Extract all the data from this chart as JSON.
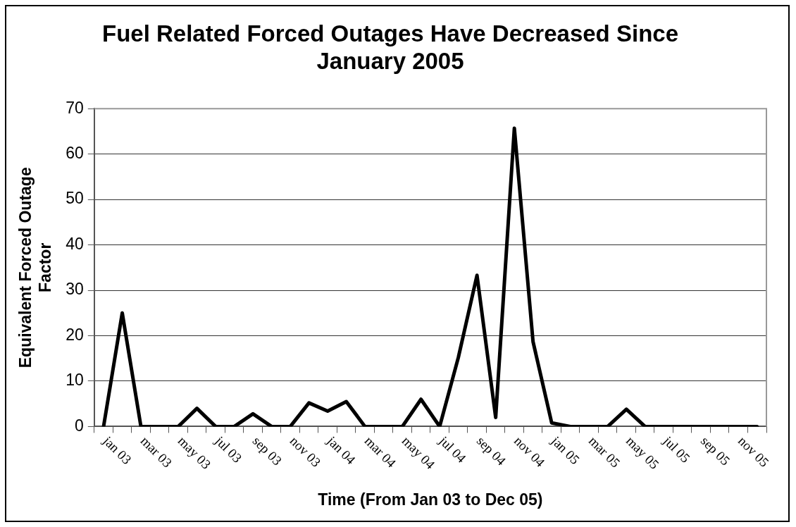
{
  "chart_data": {
    "type": "line",
    "title": "Fuel Related Forced Outages Have Decreased Since January 2005",
    "xlabel": "Time (From Jan 03 to Dec 05)",
    "ylabel": "Equivalent Forced Outage Factor",
    "categories": [
      "jan 03",
      null,
      "mar 03",
      null,
      "may 03",
      null,
      "jul 03",
      null,
      "sep 03",
      null,
      "nov 03",
      null,
      "jan 04",
      null,
      "mar 04",
      null,
      "may 04",
      null,
      "jul 04",
      null,
      "sep 04",
      null,
      "nov 04",
      null,
      "jan 05",
      null,
      "mar 05",
      null,
      "may 05",
      null,
      "jul 05",
      null,
      "sep 05",
      null,
      "nov 05",
      null
    ],
    "series": [
      {
        "color": "#000000",
        "values": [
          0,
          25,
          0,
          0,
          0,
          4,
          0,
          0,
          2.8,
          0,
          0,
          5.2,
          3.4,
          5.5,
          0,
          0,
          0,
          6,
          0,
          15.2,
          33.3,
          2,
          65.7,
          18.7,
          0.8,
          0,
          0,
          0,
          3.8,
          0,
          0,
          0,
          0,
          0,
          0,
          0
        ]
      }
    ],
    "ylim": [
      0,
      70
    ],
    "yticks": [
      0,
      10,
      20,
      30,
      40,
      50,
      60,
      70
    ],
    "grid": "y",
    "legend": false,
    "marker": "none",
    "line_style": "solid"
  }
}
